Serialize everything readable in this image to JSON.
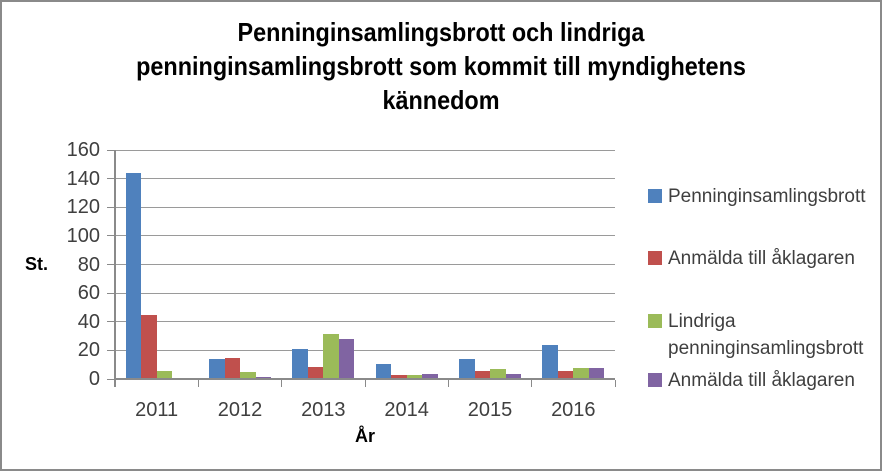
{
  "window": {
    "background": "#ffffff",
    "border_color": "#8a8a8a"
  },
  "chart_data": {
    "type": "bar",
    "title": "Penninginsamlingsbrott och lindriga penninginsamlingsbrott som kommit till myndighetens kännedom",
    "title_lines": [
      "Penninginsamlingsbrott och lindriga",
      "penninginsamlingsbrott som kommit till myndighetens",
      "kännedom"
    ],
    "xlabel": "År",
    "ylabel": "St.",
    "categories": [
      "2011",
      "2012",
      "2013",
      "2014",
      "2015",
      "2016"
    ],
    "series": [
      {
        "name": "Penninginsamlingsbrott",
        "color": "#4F81BD",
        "values": [
          143,
          13,
          20,
          10,
          13,
          23
        ]
      },
      {
        "name": "Anmälda till åklagaren",
        "color": "#C0504D",
        "values": [
          44,
          14,
          8,
          2,
          5,
          5
        ]
      },
      {
        "name": "Lindriga penninginsamlingsbrott",
        "color": "#9BBB59",
        "values": [
          5,
          4,
          31,
          2,
          6,
          7
        ]
      },
      {
        "name": "Anmälda till åklagaren",
        "color": "#8064A2",
        "values": [
          0,
          1,
          27,
          3,
          3,
          7
        ]
      }
    ],
    "ylim": [
      0,
      160
    ],
    "ytick_step": 20,
    "ytick_labels": [
      "0",
      "20",
      "40",
      "60",
      "80",
      "100",
      "120",
      "140",
      "160"
    ],
    "grid": true,
    "legend_position": "right",
    "colors": {
      "gridline": "#9a9a9a",
      "axis": "#8a8a8a",
      "tick_text": "#3f3f3f",
      "title_text": "#000000"
    }
  }
}
